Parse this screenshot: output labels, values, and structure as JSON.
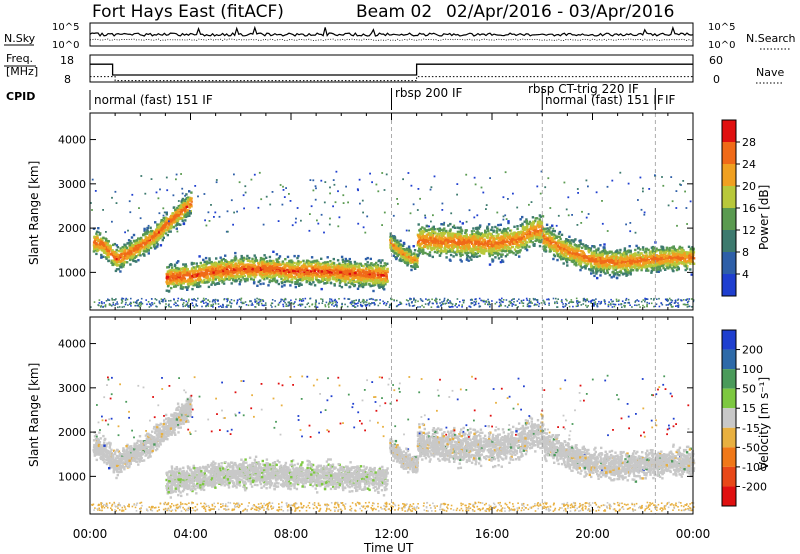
{
  "header": {
    "title": "Fort Hays East (fitACF)",
    "beam": "Beam 02",
    "date_range": "02/Apr/2016 - 03/Apr/2016"
  },
  "colors": {
    "power": [
      "#1f3fcf",
      "#2e5fa8",
      "#3d7a6e",
      "#5a9a50",
      "#b8c83a",
      "#f0a020",
      "#f06a18",
      "#e01010"
    ],
    "velocity": [
      "#1f3fcf",
      "#2e6aa8",
      "#4a9a5a",
      "#7dc840",
      "#c8c8c8",
      "#e8b040",
      "#f07818",
      "#e84818",
      "#e01010"
    ]
  },
  "chart_data": [
    {
      "type": "line",
      "title": "",
      "panels": [
        {
          "id": "nsky",
          "left_label": "N.Sky",
          "right_label": "N.Search",
          "left_ticks": [
            "10^5",
            "10^0"
          ],
          "right_ticks": [
            "10^5",
            "10^0"
          ]
        },
        {
          "id": "freq",
          "left_label_top": "Freq.",
          "left_label_unit": "[MHz]",
          "right_label": "Nave",
          "left_ticks": [
            "18",
            "8"
          ],
          "right_ticks": [
            "60",
            "0"
          ],
          "freq_series": {
            "x": [
              0,
              0.9,
              0.9,
              13.0,
              13.0,
              24
            ],
            "y": [
              14.6,
              14.6,
              10.6,
              10.6,
              14.6,
              14.6
            ],
            "ylim": [
              8,
              18
            ]
          },
          "nave_series": {
            "x": [
              0,
              1.0,
              1.0,
              13.0,
              13.0,
              24
            ],
            "y": [
              12,
              12,
              3,
              3,
              12,
              12
            ],
            "ylim": [
              0,
              60
            ]
          }
        }
      ],
      "cpid": {
        "label": "CPID",
        "segments": [
          {
            "text": "normal (fast) 151 IF",
            "start": 0.0
          },
          {
            "text": "rbsp 200 IF",
            "start": 12.0
          },
          {
            "text": "rbsp CT-trig 220 IF",
            "start": 18.0
          },
          {
            "text": "normal (fast) 151 IF",
            "start": 18.0
          },
          {
            "text": "IF",
            "start": 22.5
          }
        ]
      }
    },
    {
      "type": "heatmap",
      "quantity": "power",
      "ylabel": "Slant Range [km]",
      "xlabel": "Time UT",
      "xticks": [
        "00:00",
        "04:00",
        "08:00",
        "12:00",
        "16:00",
        "20:00",
        "00:00"
      ],
      "xlim": [
        0,
        24
      ],
      "ylim": [
        150,
        4600
      ],
      "yticks": [
        1000,
        2000,
        3000,
        4000
      ],
      "mode_boundaries_ut": [
        12.0,
        18.0,
        22.5
      ],
      "colorbar": {
        "label": "Power [dB]",
        "ticks": [
          "4",
          "8",
          "12",
          "16",
          "20",
          "24",
          "28"
        ],
        "range": [
          0,
          30
        ]
      },
      "bands": [
        {
          "x": [
            0.1,
            0.5,
            1.0,
            1.5,
            2.0,
            2.5,
            3.0,
            3.5,
            4.0
          ],
          "y": [
            1720,
            1640,
            1330,
            1450,
            1640,
            1830,
            2100,
            2350,
            2600
          ],
          "thickness_km": 380,
          "peak_db": 27
        },
        {
          "x": [
            3.0,
            4.0,
            5.0,
            6.0,
            7.0,
            8.0,
            9.0,
            10.0,
            11.0,
            11.8
          ],
          "y": [
            900,
            950,
            1050,
            1100,
            1100,
            1050,
            1050,
            1020,
            980,
            960
          ],
          "thickness_km": 420,
          "peak_db": 28
        },
        {
          "x": [
            11.9,
            12.2,
            12.5,
            12.8,
            13.0
          ],
          "y": [
            1700,
            1550,
            1400,
            1320,
            1300
          ],
          "thickness_km": 320,
          "peak_db": 24
        },
        {
          "x": [
            13.0,
            14.0,
            15.0,
            16.0,
            17.0,
            17.5,
            18.0
          ],
          "y": [
            1750,
            1720,
            1700,
            1680,
            1760,
            1950,
            2000
          ],
          "thickness_km": 520,
          "peak_db": 26
        },
        {
          "x": [
            18.0,
            19.0,
            20.0,
            21.0,
            22.0,
            23.0,
            24.0
          ],
          "y": [
            1800,
            1500,
            1300,
            1250,
            1300,
            1350,
            1350
          ],
          "thickness_km": 430,
          "peak_db": 26
        }
      ]
    },
    {
      "type": "heatmap",
      "quantity": "velocity",
      "ylabel": "Slant Range [km]",
      "xlabel": "Time UT",
      "xticks": [
        "00:00",
        "04:00",
        "08:00",
        "12:00",
        "16:00",
        "20:00",
        "00:00"
      ],
      "xlim": [
        0,
        24
      ],
      "ylim": [
        150,
        4600
      ],
      "yticks": [
        1000,
        2000,
        3000,
        4000
      ],
      "mode_boundaries_ut": [
        12.0,
        18.0,
        22.5
      ],
      "colorbar": {
        "label": "Velocity [m s⁻¹]",
        "ticks": [
          "200",
          "100",
          "50",
          "15",
          "-15",
          "-50",
          "-100",
          "-200"
        ]
      }
    }
  ]
}
